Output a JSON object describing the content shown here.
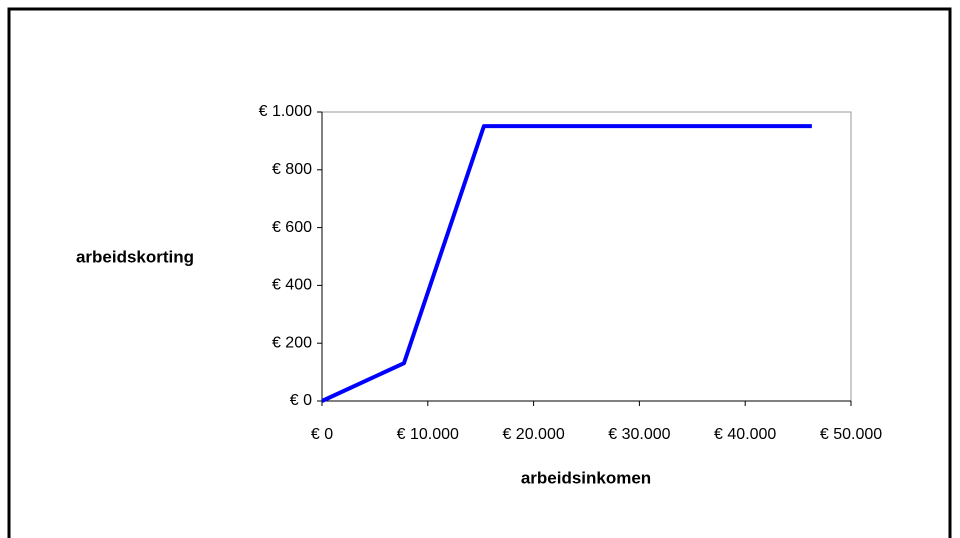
{
  "chart_data": {
    "type": "line",
    "x_label": "arbeidsinkomen",
    "y_label": "arbeidskorting",
    "x": [
      0,
      7750,
      15300,
      46300
    ],
    "values": [
      0,
      131,
      951,
      951
    ],
    "color": "#0000ff",
    "xlim": [
      0,
      50000
    ],
    "xticks": [
      {
        "value": 0,
        "label": "€ 0"
      },
      {
        "value": 10000,
        "label": "€ 10.000"
      },
      {
        "value": 20000,
        "label": "€ 20.000"
      },
      {
        "value": 30000,
        "label": "€ 30.000"
      },
      {
        "value": 40000,
        "label": "€ 40.000"
      },
      {
        "value": 50000,
        "label": "€ 50.000"
      }
    ],
    "ylim": [
      0,
      1000
    ],
    "yticks": [
      {
        "value": 0,
        "label": "€ 0"
      },
      {
        "value": 200,
        "label": "€ 200"
      },
      {
        "value": 400,
        "label": "€ 400"
      },
      {
        "value": 600,
        "label": "€ 600"
      },
      {
        "value": 800,
        "label": "€ 800"
      },
      {
        "value": 1000,
        "label": "€ 1.000"
      }
    ],
    "grid": false
  }
}
